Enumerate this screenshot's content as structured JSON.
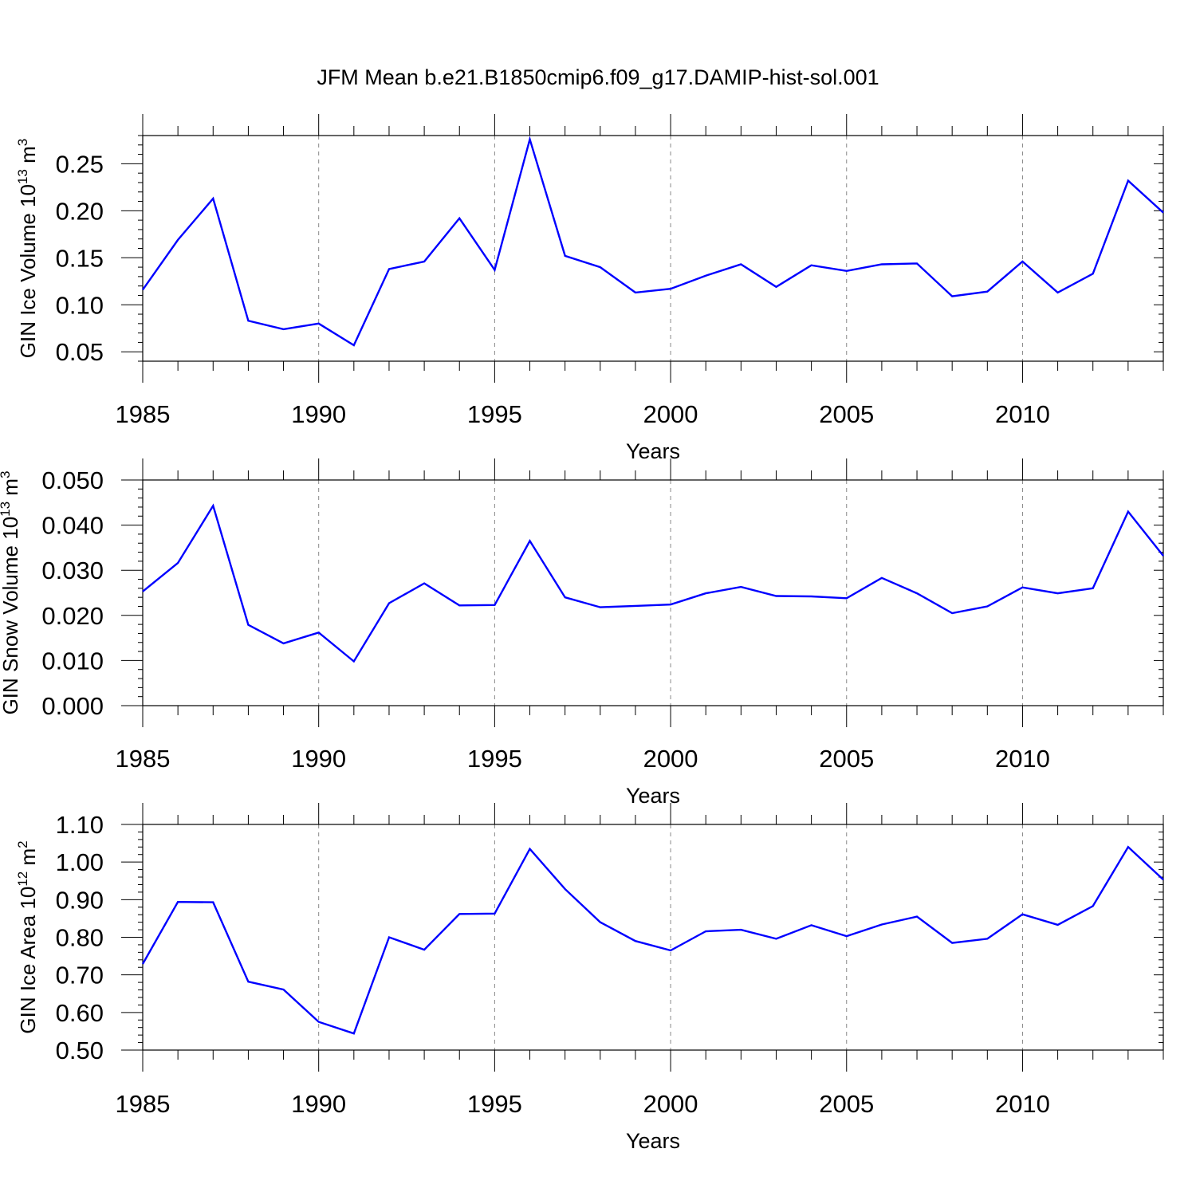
{
  "title": "JFM Mean b.e21.B1850cmip6.f09_g17.DAMIP-hist-sol.001",
  "line_color": "#0000ff",
  "chart_data": [
    {
      "type": "line",
      "title": "",
      "xlabel": "Years",
      "ylabel_main": "GIN Ice Volume 10",
      "ylabel_exp": "13",
      "ylabel_unit": " m",
      "ylabel_unit_exp": "3",
      "xlim": [
        1985,
        2014
      ],
      "ylim": [
        0.04,
        0.28
      ],
      "x_ticks": [
        1985,
        1990,
        1995,
        2000,
        2005,
        2010
      ],
      "x_tick_labels": [
        "1985",
        "1990",
        "1995",
        "2000",
        "2005",
        "2010"
      ],
      "y_ticks": [
        0.05,
        0.1,
        0.15,
        0.2,
        0.25
      ],
      "y_tick_labels": [
        "0.05",
        "0.10",
        "0.15",
        "0.20",
        "0.25"
      ],
      "y_minor_step": 0.01,
      "grid": "dashed vertical at major x ticks",
      "x": [
        1985,
        1986,
        1987,
        1988,
        1989,
        1990,
        1991,
        1992,
        1993,
        1994,
        1995,
        1996,
        1997,
        1998,
        1999,
        2000,
        2001,
        2002,
        2003,
        2004,
        2005,
        2006,
        2007,
        2008,
        2009,
        2010,
        2011,
        2012,
        2013,
        2014
      ],
      "series": [
        {
          "name": "GIN Ice Volume",
          "values": [
            0.116,
            0.169,
            0.213,
            0.083,
            0.074,
            0.08,
            0.057,
            0.138,
            0.146,
            0.192,
            0.137,
            0.276,
            0.152,
            0.14,
            0.113,
            0.117,
            0.131,
            0.143,
            0.119,
            0.142,
            0.136,
            0.143,
            0.144,
            0.109,
            0.114,
            0.146,
            0.113,
            0.133,
            0.232,
            0.198
          ]
        }
      ]
    },
    {
      "type": "line",
      "title": "",
      "xlabel": "Years",
      "ylabel_main": "GIN Snow Volume 10",
      "ylabel_exp": "13",
      "ylabel_unit": " m",
      "ylabel_unit_exp": "3",
      "xlim": [
        1985,
        2014
      ],
      "ylim": [
        0.0,
        0.05
      ],
      "x_ticks": [
        1985,
        1990,
        1995,
        2000,
        2005,
        2010
      ],
      "x_tick_labels": [
        "1985",
        "1990",
        "1995",
        "2000",
        "2005",
        "2010"
      ],
      "y_ticks": [
        0.0,
        0.01,
        0.02,
        0.03,
        0.04,
        0.05
      ],
      "y_tick_labels": [
        "0.000",
        "0.010",
        "0.020",
        "0.030",
        "0.040",
        "0.050"
      ],
      "y_minor_step": 0.002,
      "grid": "dashed vertical at major x ticks",
      "x": [
        1985,
        1986,
        1987,
        1988,
        1989,
        1990,
        1991,
        1992,
        1993,
        1994,
        1995,
        1996,
        1997,
        1998,
        1999,
        2000,
        2001,
        2002,
        2003,
        2004,
        2005,
        2006,
        2007,
        2008,
        2009,
        2010,
        2011,
        2012,
        2013,
        2014
      ],
      "series": [
        {
          "name": "GIN Snow Volume",
          "values": [
            0.0253,
            0.0316,
            0.0443,
            0.0179,
            0.0138,
            0.0162,
            0.0098,
            0.0227,
            0.0271,
            0.0222,
            0.0223,
            0.0365,
            0.024,
            0.0218,
            0.0221,
            0.0224,
            0.0249,
            0.0263,
            0.0243,
            0.0242,
            0.0238,
            0.0283,
            0.0249,
            0.0205,
            0.022,
            0.0262,
            0.0249,
            0.026,
            0.043,
            0.0332
          ]
        }
      ]
    },
    {
      "type": "line",
      "title": "",
      "xlabel": "Years",
      "ylabel_main": "GIN Ice Area 10",
      "ylabel_exp": "12",
      "ylabel_unit": " m",
      "ylabel_unit_exp": "2",
      "xlim": [
        1985,
        2014
      ],
      "ylim": [
        0.5,
        1.1
      ],
      "x_ticks": [
        1985,
        1990,
        1995,
        2000,
        2005,
        2010
      ],
      "x_tick_labels": [
        "1985",
        "1990",
        "1995",
        "2000",
        "2005",
        "2010"
      ],
      "y_ticks": [
        0.5,
        0.6,
        0.7,
        0.8,
        0.9,
        1.0,
        1.1
      ],
      "y_tick_labels": [
        "0.50",
        "0.60",
        "0.70",
        "0.80",
        "0.90",
        "1.00",
        "1.10"
      ],
      "y_minor_step": 0.02,
      "grid": "dashed vertical at major x ticks",
      "x": [
        1985,
        1986,
        1987,
        1988,
        1989,
        1990,
        1991,
        1992,
        1993,
        1994,
        1995,
        1996,
        1997,
        1998,
        1999,
        2000,
        2001,
        2002,
        2003,
        2004,
        2005,
        2006,
        2007,
        2008,
        2009,
        2010,
        2011,
        2012,
        2013,
        2014
      ],
      "series": [
        {
          "name": "GIN Ice Area",
          "values": [
            0.729,
            0.894,
            0.893,
            0.682,
            0.661,
            0.575,
            0.544,
            0.8,
            0.767,
            0.862,
            0.863,
            1.035,
            0.928,
            0.84,
            0.79,
            0.765,
            0.816,
            0.82,
            0.796,
            0.832,
            0.803,
            0.834,
            0.855,
            0.785,
            0.796,
            0.861,
            0.833,
            0.883,
            1.04,
            0.953
          ]
        }
      ]
    }
  ]
}
